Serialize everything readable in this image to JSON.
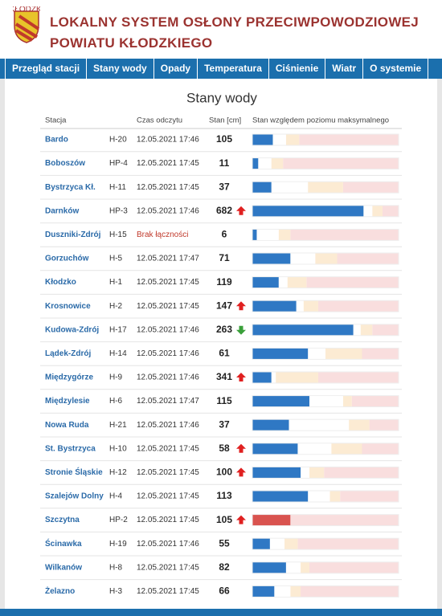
{
  "header": {
    "title_line1": "LOKALNY SYSTEM OSŁONY PRZECIWPOWODZIOWEJ",
    "title_line2": "POWIATU KŁODZKIEGO",
    "logo_text": "KŁODZKI"
  },
  "nav": [
    "Przegląd stacji",
    "Stany wody",
    "Opady",
    "Temperatura",
    "Ciśnienie",
    "Wiatr",
    "O systemie"
  ],
  "table": {
    "title": "Stany wody",
    "columns": [
      "Stacja",
      "Czas odczytu",
      "Stan [cm]",
      "Stan względem poziomu maksymalnego"
    ],
    "rows": [
      {
        "name": "Bardo",
        "code": "H-20",
        "time": "12.05.2021 17:46",
        "level": "105",
        "trend": null,
        "bar": [
          14,
          23,
          32
        ],
        "bar_color": "#2f78c4"
      },
      {
        "name": "Boboszów",
        "code": "HP-4",
        "time": "12.05.2021 17:45",
        "level": "11",
        "trend": null,
        "bar": [
          4,
          13,
          21
        ],
        "bar_color": "#2f78c4"
      },
      {
        "name": "Bystrzyca Kł.",
        "code": "H-11",
        "time": "12.05.2021 17:45",
        "level": "37",
        "trend": null,
        "bar": [
          13,
          38,
          62
        ],
        "bar_color": "#2f78c4"
      },
      {
        "name": "Darnków",
        "code": "HP-3",
        "time": "12.05.2021 17:46",
        "level": "682",
        "trend": "up",
        "bar": [
          76,
          82,
          89
        ],
        "bar_color": "#2f78c4"
      },
      {
        "name": "Duszniki-Zdrój",
        "code": "H-15",
        "time": "Brak łączności",
        "time_color": "#c0392b",
        "level": "6",
        "trend": null,
        "bar": [
          3,
          18,
          26
        ],
        "bar_color": "#2f78c4"
      },
      {
        "name": "Gorzuchów",
        "code": "H-5",
        "time": "12.05.2021 17:47",
        "level": "71",
        "trend": null,
        "bar": [
          26,
          43,
          58
        ],
        "bar_color": "#2f78c4"
      },
      {
        "name": "Kłodzko",
        "code": "H-1",
        "time": "12.05.2021 17:45",
        "level": "119",
        "trend": null,
        "bar": [
          18,
          24,
          37
        ],
        "bar_color": "#2f78c4"
      },
      {
        "name": "Krosnowice",
        "code": "H-2",
        "time": "12.05.2021 17:45",
        "level": "147",
        "trend": "up",
        "bar": [
          30,
          35,
          45
        ],
        "bar_color": "#2f78c4"
      },
      {
        "name": "Kudowa-Zdrój",
        "code": "H-17",
        "time": "12.05.2021 17:46",
        "level": "263",
        "trend": "down",
        "bar": [
          69,
          74,
          82
        ],
        "bar_color": "#2f78c4"
      },
      {
        "name": "Lądek-Zdrój",
        "code": "H-14",
        "time": "12.05.2021 17:46",
        "level": "61",
        "trend": null,
        "bar": [
          38,
          50,
          75
        ],
        "bar_color": "#2f78c4"
      },
      {
        "name": "Międzygórze",
        "code": "H-9",
        "time": "12.05.2021 17:46",
        "level": "341",
        "trend": "up",
        "bar": [
          13,
          16,
          45
        ],
        "bar_color": "#2f78c4"
      },
      {
        "name": "Międzylesie",
        "code": "H-6",
        "time": "12.05.2021 17:47",
        "level": "115",
        "trend": null,
        "bar": [
          39,
          62,
          68
        ],
        "bar_color": "#2f78c4"
      },
      {
        "name": "Nowa Ruda",
        "code": "H-21",
        "time": "12.05.2021 17:46",
        "level": "37",
        "trend": null,
        "bar": [
          25,
          66,
          80
        ],
        "bar_color": "#2f78c4"
      },
      {
        "name": "St. Bystrzyca",
        "code": "H-10",
        "time": "12.05.2021 17:45",
        "level": "58",
        "trend": "up",
        "bar": [
          31,
          54,
          75
        ],
        "bar_color": "#2f78c4"
      },
      {
        "name": "Stronie Śląskie",
        "code": "H-12",
        "time": "12.05.2021 17:45",
        "level": "100",
        "trend": "up",
        "bar": [
          33,
          39,
          49
        ],
        "bar_color": "#2f78c4"
      },
      {
        "name": "Szalejów Dolny",
        "code": "H-4",
        "time": "12.05.2021 17:45",
        "level": "113",
        "trend": null,
        "bar": [
          38,
          53,
          60
        ],
        "bar_color": "#2f78c4"
      },
      {
        "name": "Szczytna",
        "code": "HP-2",
        "time": "12.05.2021 17:45",
        "level": "105",
        "trend": "up",
        "bar": [
          26,
          26,
          26
        ],
        "bar_color": "#d9534f"
      },
      {
        "name": "Ścinawka",
        "code": "H-19",
        "time": "12.05.2021 17:46",
        "level": "55",
        "trend": null,
        "bar": [
          12,
          22,
          31
        ],
        "bar_color": "#2f78c4"
      },
      {
        "name": "Wilkanów",
        "code": "H-8",
        "time": "12.05.2021 17:45",
        "level": "82",
        "trend": null,
        "bar": [
          23,
          33,
          39
        ],
        "bar_color": "#2f78c4"
      },
      {
        "name": "Żelazno",
        "code": "H-3",
        "time": "12.05.2021 17:45",
        "level": "66",
        "trend": null,
        "bar": [
          15,
          26,
          33
        ],
        "bar_color": "#2f78c4"
      }
    ]
  }
}
